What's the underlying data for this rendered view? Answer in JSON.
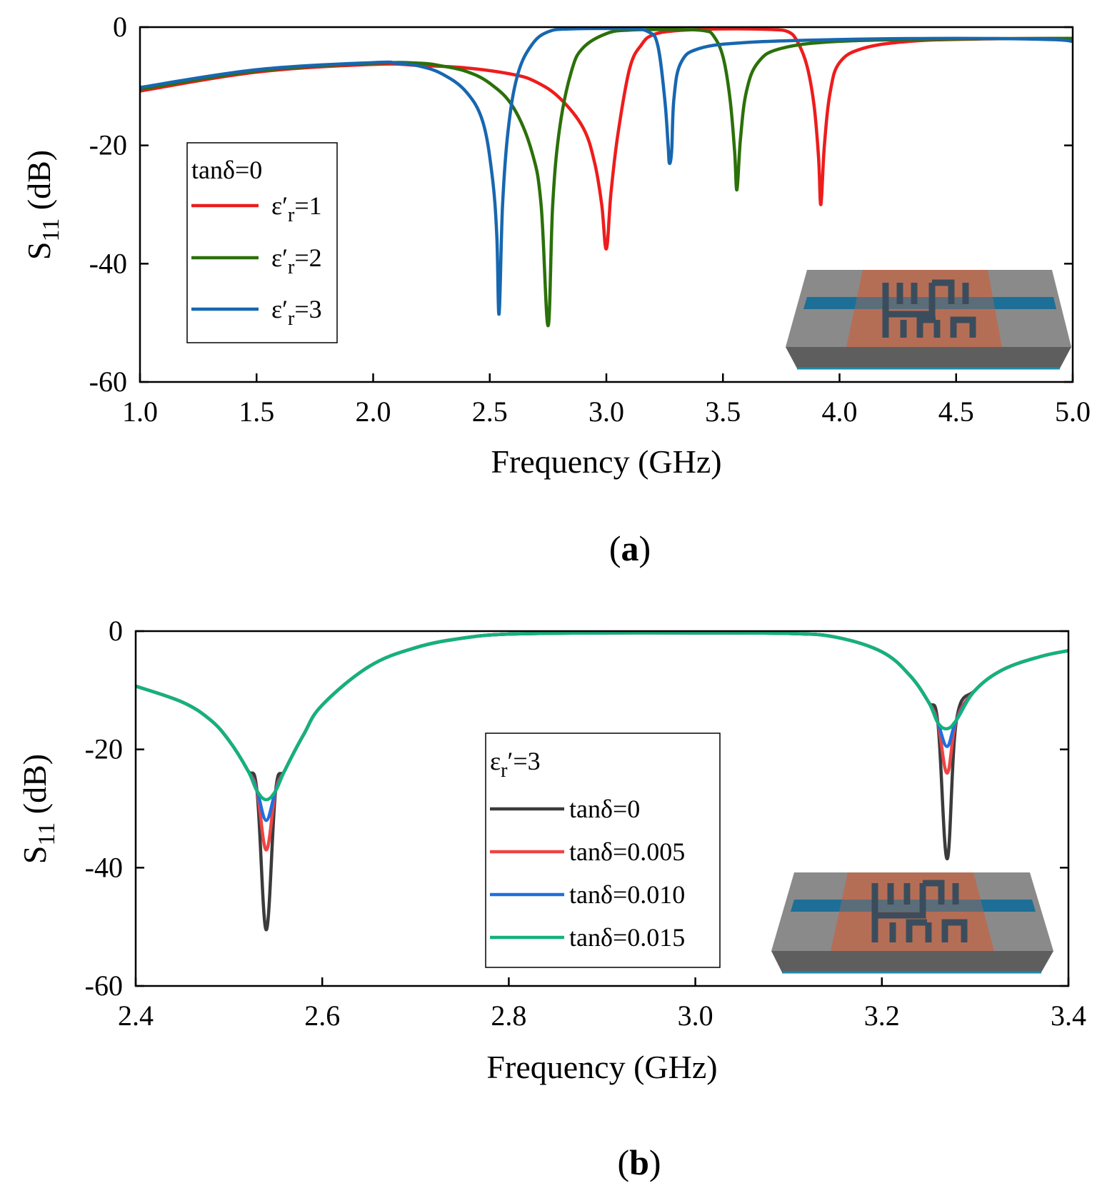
{
  "chart_data": [
    {
      "id": "a",
      "type": "line",
      "panel_label": "a",
      "xlabel": "Frequency (GHz)",
      "ylabel": "S",
      "ylabel_sub": "11",
      "ylabel_unit": " (dB)",
      "xlim": [
        1.0,
        5.0
      ],
      "ylim": [
        -60,
        0
      ],
      "xticks": [
        1.0,
        1.5,
        2.0,
        2.5,
        3.0,
        3.5,
        4.0,
        4.5,
        5.0
      ],
      "xtick_labels": [
        "1.0",
        "1.5",
        "2.0",
        "2.5",
        "3.0",
        "3.5",
        "4.0",
        "4.5",
        "5.0"
      ],
      "yticks": [
        0,
        -20,
        -40,
        -60
      ],
      "ytick_labels": [
        "0",
        "-20",
        "-40",
        "-60"
      ],
      "legend": {
        "title": "tanδ=0",
        "entries": [
          {
            "prefix": "ε′",
            "sub": "r",
            "suffix": "=1"
          },
          {
            "prefix": "ε′",
            "sub": "r",
            "suffix": "=2"
          },
          {
            "prefix": "ε′",
            "sub": "r",
            "suffix": "=3"
          }
        ],
        "position": "middle-left"
      },
      "inset": "antenna-sensor-3d-illustration",
      "series": [
        {
          "name": "ε′r=1",
          "color": "#ee1c1c",
          "points": [
            [
              1.0,
              -10.8
            ],
            [
              1.5,
              -7.6
            ],
            [
              2.0,
              -6.3
            ],
            [
              2.2,
              -6.5
            ],
            [
              2.4,
              -6.9
            ],
            [
              2.6,
              -8.0
            ],
            [
              2.7,
              -9.3
            ],
            [
              2.8,
              -12.0
            ],
            [
              2.9,
              -17.0
            ],
            [
              2.95,
              -23.0
            ],
            [
              2.98,
              -30.0
            ],
            [
              3.0,
              -37.5
            ],
            [
              3.02,
              -28.0
            ],
            [
              3.05,
              -18.0
            ],
            [
              3.1,
              -7.0
            ],
            [
              3.15,
              -3.0
            ],
            [
              3.2,
              -1.3
            ],
            [
              3.3,
              -0.6
            ],
            [
              3.5,
              -0.3
            ],
            [
              3.7,
              -0.4
            ],
            [
              3.78,
              -0.8
            ],
            [
              3.82,
              -2.5
            ],
            [
              3.86,
              -6.5
            ],
            [
              3.89,
              -13.0
            ],
            [
              3.91,
              -22.0
            ],
            [
              3.92,
              -30.0
            ],
            [
              3.935,
              -20.0
            ],
            [
              3.96,
              -11.0
            ],
            [
              4.0,
              -6.0
            ],
            [
              4.1,
              -3.6
            ],
            [
              4.3,
              -2.4
            ],
            [
              4.6,
              -2.0
            ],
            [
              5.0,
              -1.9
            ]
          ]
        },
        {
          "name": "ε′r=2",
          "color": "#2b7009",
          "points": [
            [
              1.0,
              -10.5
            ],
            [
              1.5,
              -7.4
            ],
            [
              2.0,
              -6.1
            ],
            [
              2.2,
              -6.1
            ],
            [
              2.3,
              -6.6
            ],
            [
              2.4,
              -7.5
            ],
            [
              2.5,
              -9.5
            ],
            [
              2.6,
              -13.5
            ],
            [
              2.68,
              -21.0
            ],
            [
              2.72,
              -30.0
            ],
            [
              2.75,
              -50.5
            ],
            [
              2.77,
              -30.0
            ],
            [
              2.8,
              -17.0
            ],
            [
              2.85,
              -7.5
            ],
            [
              2.9,
              -3.5
            ],
            [
              3.0,
              -1.1
            ],
            [
              3.1,
              -0.5
            ],
            [
              3.3,
              -0.4
            ],
            [
              3.42,
              -0.6
            ],
            [
              3.46,
              -1.5
            ],
            [
              3.5,
              -5.0
            ],
            [
              3.53,
              -12.0
            ],
            [
              3.55,
              -21.0
            ],
            [
              3.56,
              -27.5
            ],
            [
              3.575,
              -19.0
            ],
            [
              3.6,
              -11.0
            ],
            [
              3.65,
              -6.0
            ],
            [
              3.75,
              -3.6
            ],
            [
              4.0,
              -2.4
            ],
            [
              4.5,
              -2.0
            ],
            [
              5.0,
              -1.9
            ]
          ]
        },
        {
          "name": "ε′r=3",
          "color": "#1767b0",
          "points": [
            [
              1.0,
              -10.2
            ],
            [
              1.5,
              -7.2
            ],
            [
              2.0,
              -6.0
            ],
            [
              2.1,
              -6.1
            ],
            [
              2.2,
              -6.6
            ],
            [
              2.3,
              -8.0
            ],
            [
              2.4,
              -11.0
            ],
            [
              2.47,
              -16.0
            ],
            [
              2.51,
              -25.0
            ],
            [
              2.53,
              -35.0
            ],
            [
              2.54,
              -48.5
            ],
            [
              2.555,
              -30.0
            ],
            [
              2.58,
              -17.0
            ],
            [
              2.62,
              -8.0
            ],
            [
              2.68,
              -3.0
            ],
            [
              2.75,
              -0.8
            ],
            [
              2.85,
              -0.3
            ],
            [
              3.1,
              -0.3
            ],
            [
              3.18,
              -0.8
            ],
            [
              3.22,
              -3.0
            ],
            [
              3.25,
              -12.0
            ],
            [
              3.265,
              -20.0
            ],
            [
              3.27,
              -23.0
            ],
            [
              3.28,
              -21.0
            ],
            [
              3.29,
              -12.0
            ],
            [
              3.32,
              -6.0
            ],
            [
              3.4,
              -3.6
            ],
            [
              3.6,
              -2.6
            ],
            [
              4.0,
              -2.1
            ],
            [
              4.5,
              -1.9
            ],
            [
              4.9,
              -2.1
            ],
            [
              5.0,
              -2.4
            ]
          ]
        }
      ]
    },
    {
      "id": "b",
      "type": "line",
      "panel_label": "b",
      "xlabel": "Frequency (GHz)",
      "ylabel": "S",
      "ylabel_sub": "11",
      "ylabel_unit": " (dB)",
      "xlim": [
        2.4,
        3.4
      ],
      "ylim": [
        -60,
        0
      ],
      "xticks": [
        2.4,
        2.6,
        2.8,
        3.0,
        3.2,
        3.4
      ],
      "xtick_labels": [
        "2.4",
        "2.6",
        "2.8",
        "3.0",
        "3.2",
        "3.4"
      ],
      "yticks": [
        0,
        -20,
        -40,
        -60
      ],
      "ytick_labels": [
        "0",
        "-20",
        "-40",
        "-60"
      ],
      "legend": {
        "title_prefix": "ε",
        "title_sub": "r",
        "title_suffix": "′=3",
        "entries": [
          "tanδ=0",
          "tanδ=0.005",
          "tanδ=0.010",
          "tanδ=0.015"
        ],
        "position": "center-right"
      },
      "inset": "antenna-sensor-3d-illustration",
      "series": [
        {
          "name": "tanδ=0",
          "color": "#3b3b3b",
          "dip1": -50.5,
          "dip2": -38.5
        },
        {
          "name": "tanδ=0.005",
          "color": "#ef4444",
          "dip1": -37.0,
          "dip2": -24.0
        },
        {
          "name": "tanδ=0.010",
          "color": "#1f6fe0",
          "dip1": -32.0,
          "dip2": -19.5
        },
        {
          "name": "tanδ=0.015",
          "color": "#14b27a",
          "dip1": -28.5,
          "dip2": -16.5
        }
      ],
      "shared_shape": [
        [
          2.4,
          -9.3
        ],
        [
          2.45,
          -12.0
        ],
        [
          2.48,
          -15.0
        ],
        [
          2.5,
          -18.5
        ],
        [
          2.52,
          -23.5
        ],
        [
          2.53,
          -27.0
        ],
        [
          2.54,
          "dip1"
        ],
        [
          2.55,
          -27.0
        ],
        [
          2.56,
          -23.5
        ],
        [
          2.58,
          -17.5
        ],
        [
          2.6,
          -12.5
        ],
        [
          2.65,
          -6.0
        ],
        [
          2.7,
          -2.8
        ],
        [
          2.75,
          -1.2
        ],
        [
          2.8,
          -0.5
        ],
        [
          2.9,
          -0.3
        ],
        [
          3.0,
          -0.3
        ],
        [
          3.1,
          -0.4
        ],
        [
          3.15,
          -1.0
        ],
        [
          3.2,
          -3.5
        ],
        [
          3.23,
          -7.5
        ],
        [
          3.25,
          -12.0
        ],
        [
          3.26,
          -15.5
        ],
        [
          3.27,
          "dip2"
        ],
        [
          3.28,
          -15.0
        ],
        [
          3.3,
          -10.0
        ],
        [
          3.33,
          -6.5
        ],
        [
          3.37,
          -4.3
        ],
        [
          3.4,
          -3.3
        ]
      ]
    }
  ]
}
